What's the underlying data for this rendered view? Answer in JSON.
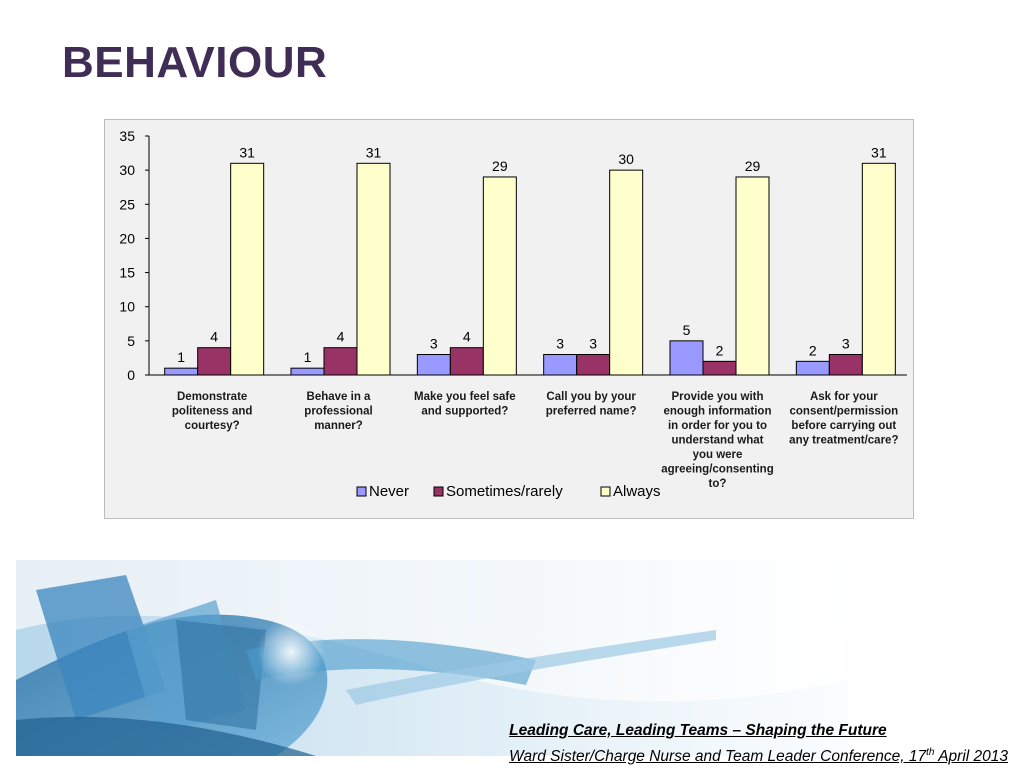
{
  "slide": {
    "title": "BEHAVIOUR"
  },
  "footer": {
    "line1": "Leading Care, Leading Teams – Shaping the Future",
    "line2_pre": "Ward Sister/Charge Nurse and Team Leader Conference, 17",
    "line2_sup": "th",
    "line2_post": " April 2013"
  },
  "chart_data": {
    "type": "bar",
    "categories": [
      [
        "Demonstrate",
        "politeness and",
        "courtesy?"
      ],
      [
        "Behave in a",
        "professional",
        "manner?"
      ],
      [
        "Make you feel safe",
        "and supported?"
      ],
      [
        "Call you by your",
        "preferred name?"
      ],
      [
        "Provide you with",
        "enough information",
        "in order for you to",
        "understand what",
        "you were",
        "agreeing/consenting",
        "to?"
      ],
      [
        "Ask for your",
        "consent/permission",
        "before carrying out",
        "any treatment/care?"
      ]
    ],
    "series": [
      {
        "name": "Never",
        "color": "#9999ff",
        "values": [
          1,
          1,
          3,
          3,
          5,
          2
        ]
      },
      {
        "name": "Sometimes/rarely",
        "color": "#993366",
        "values": [
          4,
          4,
          4,
          3,
          2,
          3
        ]
      },
      {
        "name": "Always",
        "color": "#ffffcc",
        "values": [
          31,
          31,
          29,
          30,
          29,
          31
        ]
      }
    ],
    "ylim": [
      0,
      35
    ],
    "yticks": [
      0,
      5,
      10,
      15,
      20,
      25,
      30,
      35
    ],
    "data_labels": true,
    "grid": false,
    "legend_position": "bottom"
  }
}
